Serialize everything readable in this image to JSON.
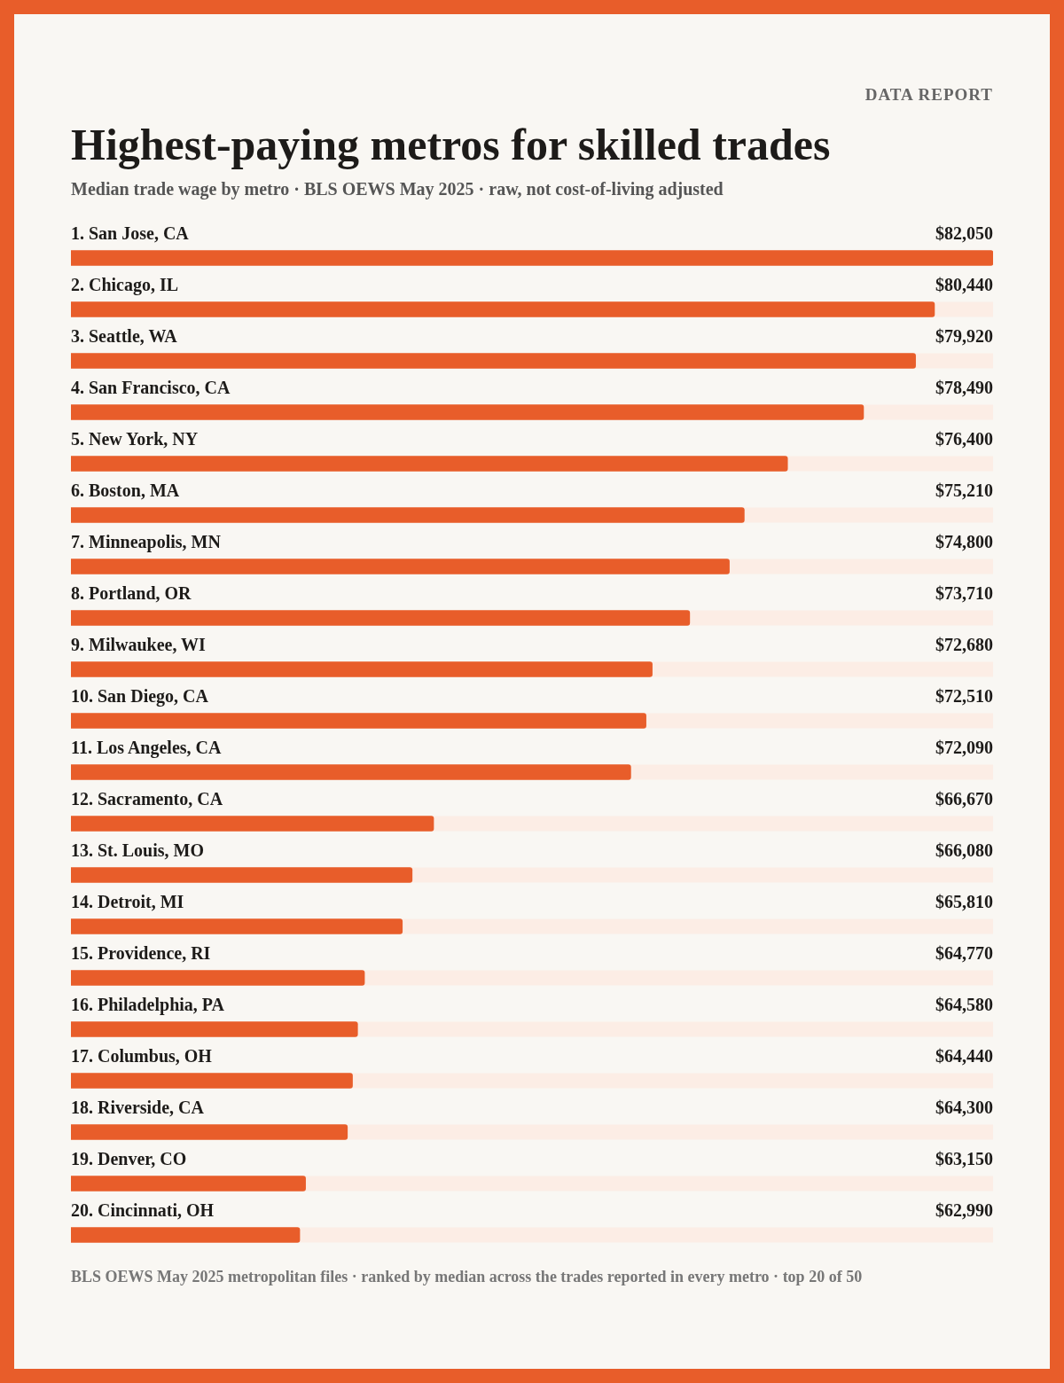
{
  "chart_data": {
    "type": "bar",
    "orientation": "horizontal",
    "title": "Highest-paying metros for skilled trades",
    "subtitle": "Median trade wage by metro · BLS OEWS May 2025 · raw, not cost-of-living adjusted",
    "categories": [
      "1. San Jose, CA",
      "2. Chicago, IL",
      "3. Seattle, WA",
      "4. San Francisco, CA",
      "5. New York, NY",
      "6. Boston, MA",
      "7. Minneapolis, MN",
      "8. Portland, OR",
      "9. Milwaukee, WI",
      "10. San Diego, CA",
      "11. Los Angeles, CA",
      "12. Sacramento, CA",
      "13. St. Louis, MO",
      "14. Detroit, MI",
      "15. Providence, RI",
      "16. Philadelphia, PA",
      "17. Columbus, OH",
      "18. Riverside, CA",
      "19. Denver, CO",
      "20. Cincinnati, OH"
    ],
    "values": [
      82050,
      80440,
      79920,
      78490,
      76400,
      75210,
      74800,
      73710,
      72680,
      72510,
      72090,
      66670,
      66080,
      65810,
      64770,
      64580,
      64440,
      64300,
      63150,
      62990
    ],
    "value_labels": [
      "$82,050",
      "$80,440",
      "$79,920",
      "$78,490",
      "$76,400",
      "$75,210",
      "$74,800",
      "$73,710",
      "$72,680",
      "$72,510",
      "$72,090",
      "$66,670",
      "$66,080",
      "$65,810",
      "$64,770",
      "$64,580",
      "$64,440",
      "$64,300",
      "$63,150",
      "$62,990"
    ],
    "color": "#e85d2a",
    "xlim": [
      56700,
      82050
    ],
    "tick_labels": false,
    "legend": false,
    "annotations": [
      "DATA REPORT",
      "BLS OEWS May 2025 metropolitan files · ranked by median across the trades reported in every metro · top 20 of 50"
    ]
  }
}
